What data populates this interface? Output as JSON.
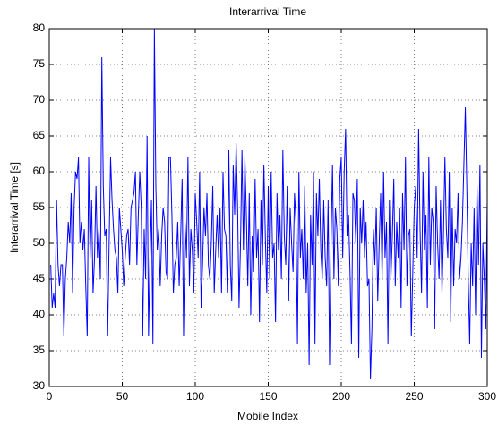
{
  "chart_data": {
    "type": "line",
    "title": "Interarrival Time",
    "xlabel": "Mobile Index",
    "ylabel": "Interarrival Time [s]",
    "xlim": [
      0,
      300
    ],
    "ylim": [
      30,
      80
    ],
    "xticks": [
      0,
      50,
      100,
      150,
      200,
      250,
      300
    ],
    "yticks": [
      30,
      35,
      40,
      45,
      50,
      55,
      60,
      65,
      70,
      75,
      80
    ],
    "grid": true,
    "series": [
      {
        "color": "#0000ff",
        "x": [
          1,
          2,
          3,
          4,
          5,
          6,
          7,
          8,
          9,
          10,
          11,
          12,
          13,
          14,
          15,
          16,
          17,
          18,
          19,
          20,
          21,
          22,
          23,
          24,
          25,
          26,
          27,
          28,
          29,
          30,
          31,
          32,
          33,
          34,
          35,
          36,
          37,
          38,
          39,
          40,
          41,
          42,
          43,
          44,
          45,
          46,
          47,
          48,
          49,
          50,
          51,
          52,
          53,
          54,
          55,
          56,
          57,
          58,
          59,
          60,
          61,
          62,
          63,
          64,
          65,
          66,
          67,
          68,
          69,
          70,
          71,
          72,
          73,
          74,
          75,
          76,
          77,
          78,
          79,
          80,
          81,
          82,
          83,
          84,
          85,
          86,
          87,
          88,
          89,
          90,
          91,
          92,
          93,
          94,
          95,
          96,
          97,
          98,
          99,
          100,
          101,
          102,
          103,
          104,
          105,
          106,
          107,
          108,
          109,
          110,
          111,
          112,
          113,
          114,
          115,
          116,
          117,
          118,
          119,
          120,
          121,
          122,
          123,
          124,
          125,
          126,
          127,
          128,
          129,
          130,
          131,
          132,
          133,
          134,
          135,
          136,
          137,
          138,
          139,
          140,
          141,
          142,
          143,
          144,
          145,
          146,
          147,
          148,
          149,
          150,
          151,
          152,
          153,
          154,
          155,
          156,
          157,
          158,
          159,
          160,
          161,
          162,
          163,
          164,
          165,
          166,
          167,
          168,
          169,
          170,
          171,
          172,
          173,
          174,
          175,
          176,
          177,
          178,
          179,
          180,
          181,
          182,
          183,
          184,
          185,
          186,
          187,
          188,
          189,
          190,
          191,
          192,
          193,
          194,
          195,
          196,
          197,
          198,
          199,
          200,
          201,
          202,
          203,
          204,
          205,
          206,
          207,
          208,
          209,
          210,
          211,
          212,
          213,
          214,
          215,
          216,
          217,
          218,
          219,
          220,
          221,
          222,
          223,
          224,
          225,
          226,
          227,
          228,
          229,
          230,
          231,
          232,
          233,
          234,
          235,
          236,
          237,
          238,
          239,
          240,
          241,
          242,
          243,
          244,
          245,
          246,
          247,
          248,
          249,
          250,
          251,
          252,
          253,
          254,
          255,
          256,
          257,
          258,
          259,
          260,
          261,
          262,
          263,
          264,
          265,
          266,
          267,
          268,
          269,
          270,
          271,
          272,
          273,
          274,
          275,
          276,
          277,
          278,
          279,
          280,
          281,
          282,
          283,
          284,
          285,
          286,
          287,
          288,
          289,
          290,
          291,
          292,
          293,
          294,
          295,
          296,
          297,
          298,
          299,
          300
        ],
        "values": [
          47,
          41,
          43,
          41,
          56,
          47,
          44,
          47,
          47,
          37,
          45,
          48,
          53,
          50,
          57,
          43,
          55,
          60,
          59,
          62,
          50,
          53,
          49,
          52,
          44,
          37,
          62,
          48,
          56,
          43,
          48,
          58,
          48,
          52,
          45,
          76,
          58,
          51,
          52,
          37,
          50,
          62,
          56,
          52,
          49,
          48,
          43,
          55,
          52,
          49,
          44,
          48,
          51,
          52,
          47,
          55,
          56,
          57,
          60,
          47,
          54,
          60,
          55,
          37,
          52,
          45,
          65,
          37,
          48,
          56,
          36,
          80,
          58,
          49,
          52,
          44,
          51,
          55,
          53,
          46,
          45,
          62,
          62,
          54,
          43,
          47,
          48,
          53,
          44,
          51,
          59,
          37,
          53,
          48,
          62,
          44,
          52,
          49,
          43,
          57,
          53,
          48,
          60,
          41,
          47,
          55,
          51,
          57,
          47,
          45,
          50,
          58,
          43,
          49,
          54,
          48,
          55,
          43,
          60,
          52,
          51,
          43,
          63,
          47,
          42,
          61,
          54,
          64,
          55,
          41,
          50,
          63,
          49,
          62,
          54,
          44,
          57,
          40,
          51,
          46,
          59,
          48,
          52,
          39,
          56,
          47,
          61,
          51,
          43,
          58,
          45,
          60,
          48,
          50,
          39,
          57,
          49,
          54,
          45,
          63,
          51,
          47,
          58,
          42,
          55,
          50,
          46,
          57,
          53,
          36,
          60,
          48,
          52,
          45,
          58,
          43,
          50,
          33,
          54,
          47,
          60,
          36,
          57,
          51,
          59,
          49,
          45,
          56,
          48,
          44,
          56,
          33,
          50,
          61,
          45,
          55,
          52,
          44,
          59,
          62,
          48,
          60,
          66,
          51,
          54,
          46,
          36,
          57,
          56,
          50,
          59,
          34,
          55,
          50,
          56,
          48,
          53,
          44,
          45,
          31,
          38,
          52,
          47,
          55,
          42,
          50,
          57,
          45,
          60,
          48,
          53,
          36,
          56,
          45,
          51,
          59,
          44,
          53,
          48,
          55,
          41,
          57,
          49,
          62,
          44,
          51,
          52,
          37,
          46,
          55,
          58,
          48,
          66,
          52,
          43,
          60,
          49,
          54,
          41,
          62,
          47,
          55,
          53,
          38,
          58,
          50,
          45,
          56,
          43,
          51,
          62,
          52,
          48,
          60,
          39,
          55,
          44,
          52,
          50,
          57,
          45,
          48,
          53,
          61,
          69,
          58,
          45,
          36,
          50,
          44,
          55,
          40,
          58,
          47,
          61,
          34,
          50,
          45,
          38,
          56
        ]
      }
    ]
  }
}
